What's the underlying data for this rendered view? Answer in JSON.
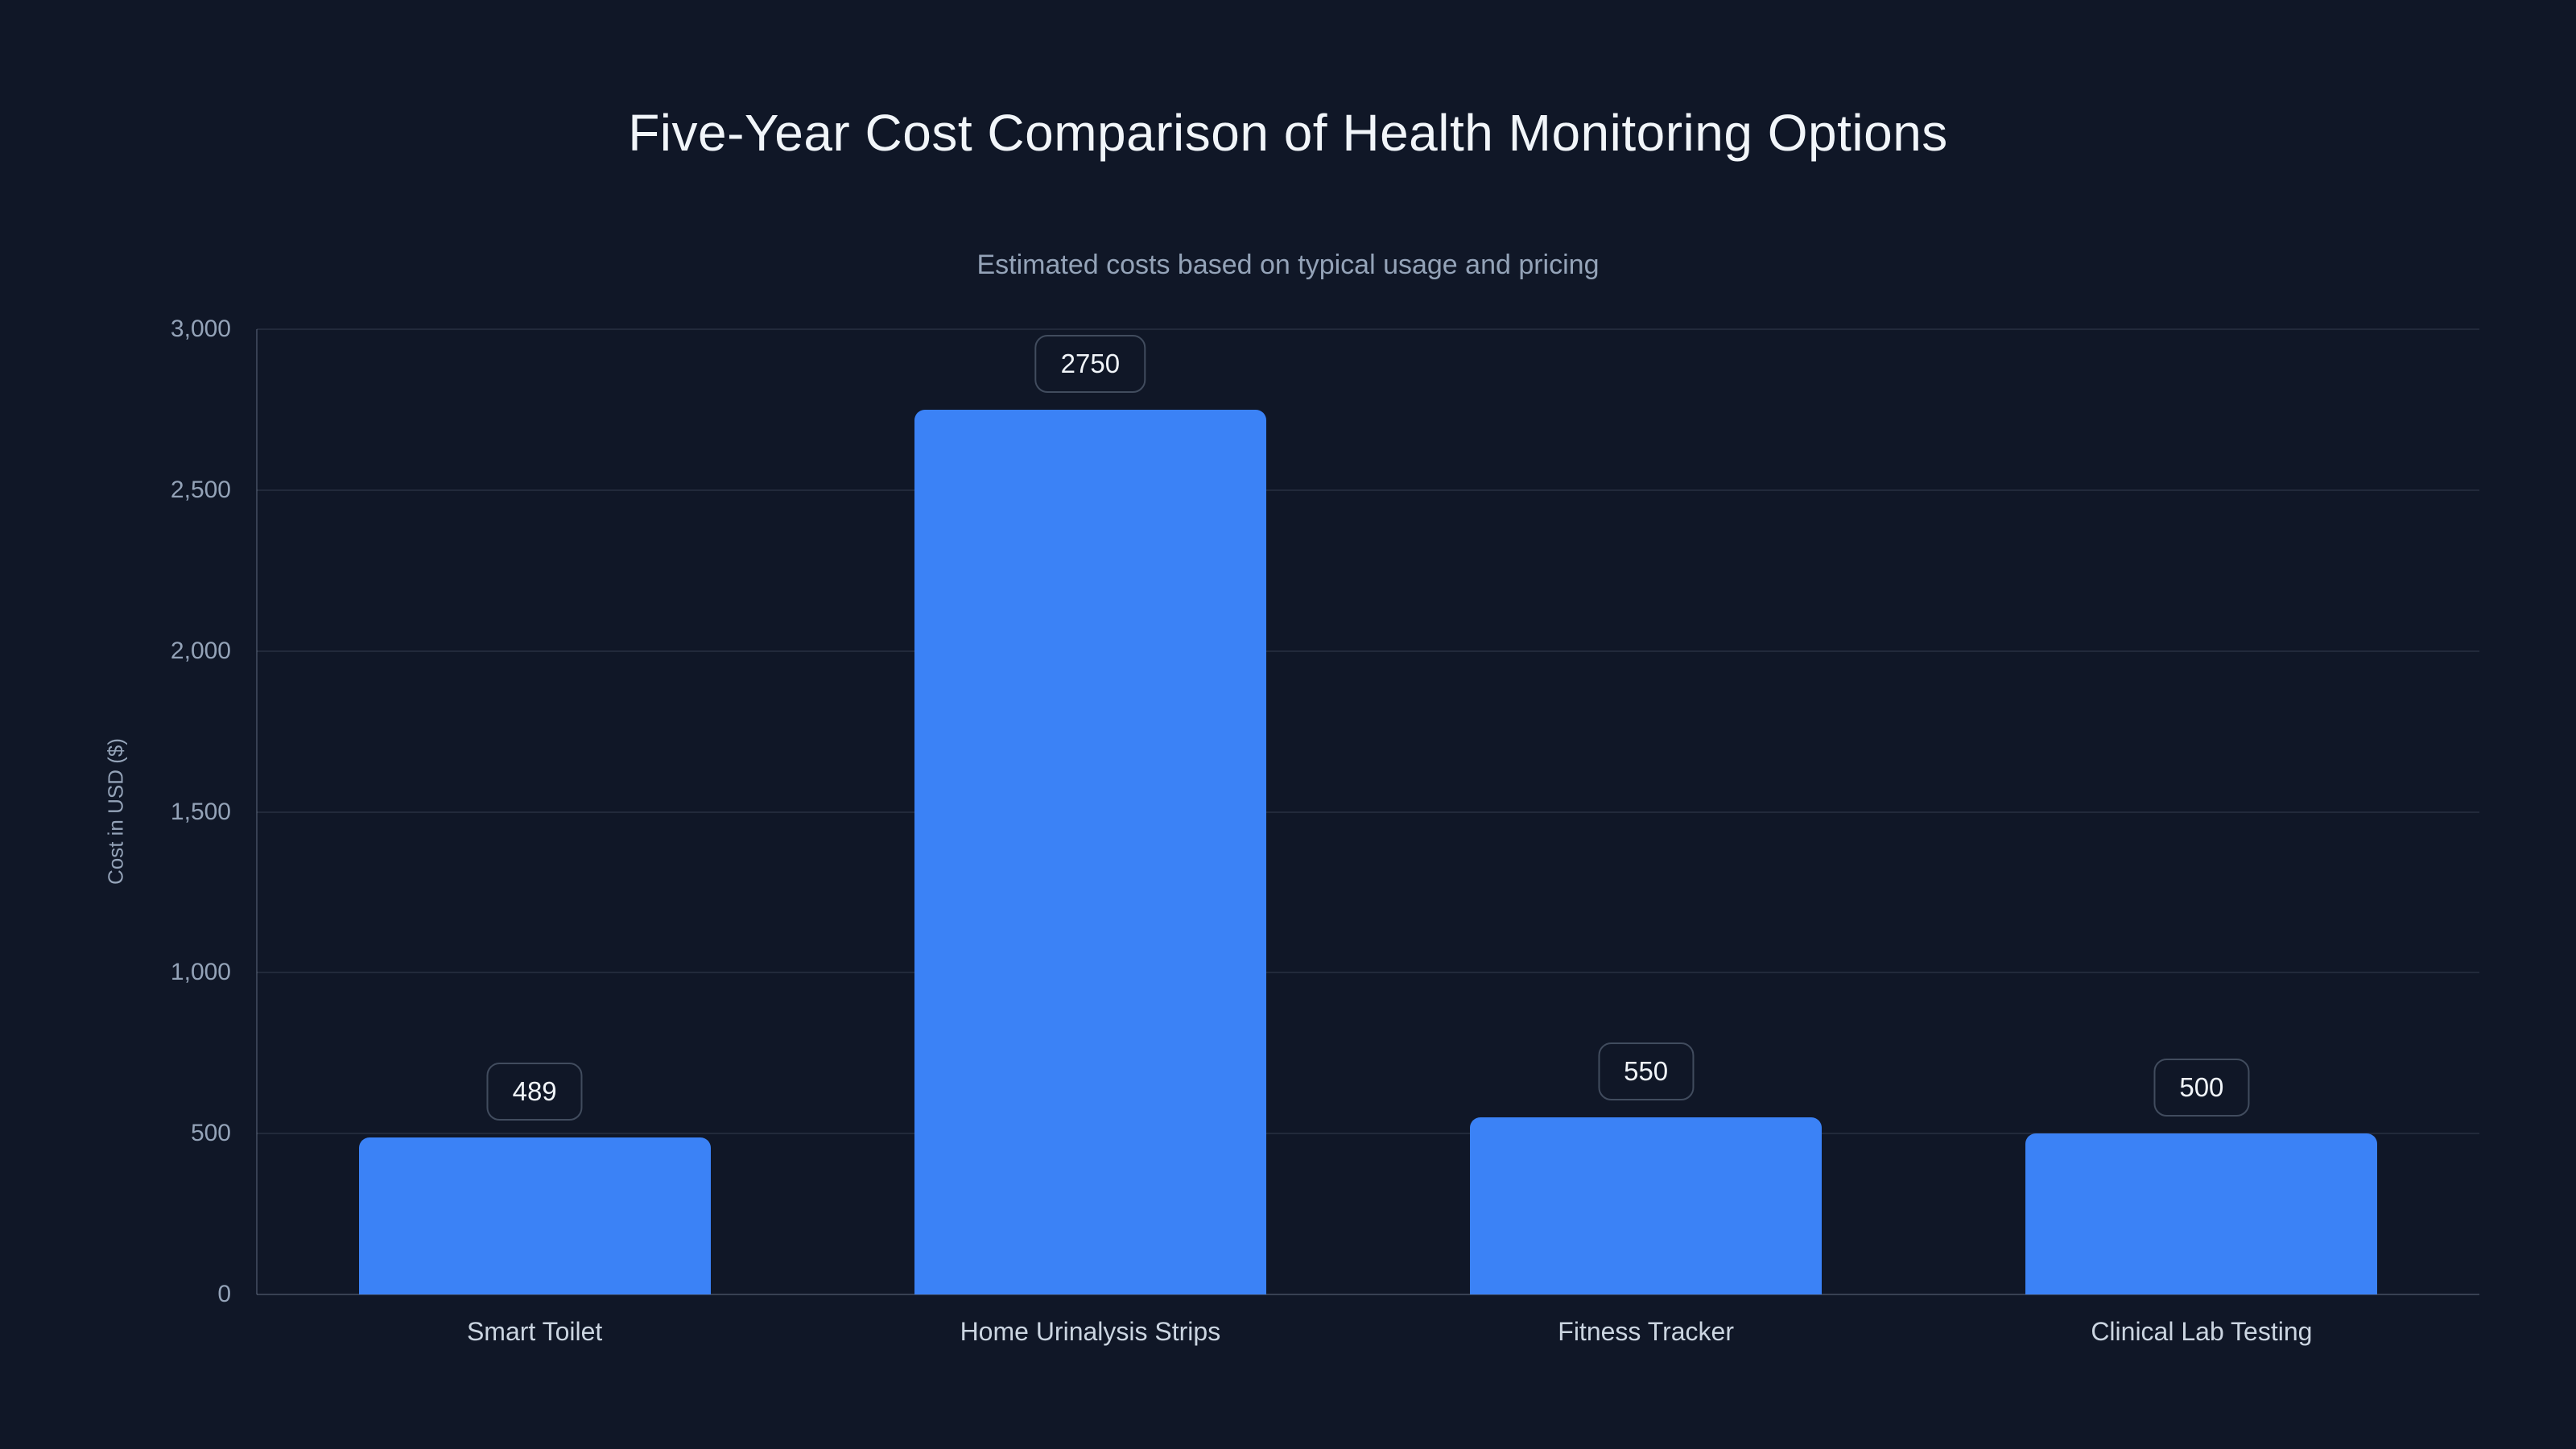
{
  "page": {
    "background_color": "#101727"
  },
  "header": {
    "title": "Five-Year Cost Comparison of Health Monitoring Options",
    "subtitle": "Estimated costs based on typical usage and pricing"
  },
  "chart_data": {
    "type": "bar",
    "title": "Five-Year Cost Comparison of Health Monitoring Options",
    "subtitle": "Estimated costs based on typical usage and pricing",
    "categories": [
      "Smart Toilet",
      "Home Urinalysis Strips",
      "Fitness Tracker",
      "Clinical Lab Testing"
    ],
    "values": [
      489,
      2750,
      550,
      500
    ],
    "bar_value_labels": [
      "489",
      "2750",
      "550",
      "500"
    ],
    "xlabel": "",
    "ylabel": "Cost in USD ($)",
    "ylim": [
      0,
      3000
    ],
    "ytick_step": 500,
    "ytick_labels": [
      "0",
      "500",
      "1,000",
      "1,500",
      "2,000",
      "2,500",
      "3,000"
    ],
    "grid": true,
    "legend": false,
    "colors": {
      "bar": "#3b82f6",
      "background": "#101727",
      "title_text": "#f1f5f9",
      "subtitle_text": "#94a3b8",
      "tick_text": "#94a3b8",
      "category_text": "#cbd5e1",
      "badge_text": "#f1f5f9",
      "badge_border": "rgba(148,163,184,0.38)",
      "gridline": "rgba(148,163,184,0.14)",
      "axis_line": "rgba(148,163,184,0.30)"
    }
  }
}
